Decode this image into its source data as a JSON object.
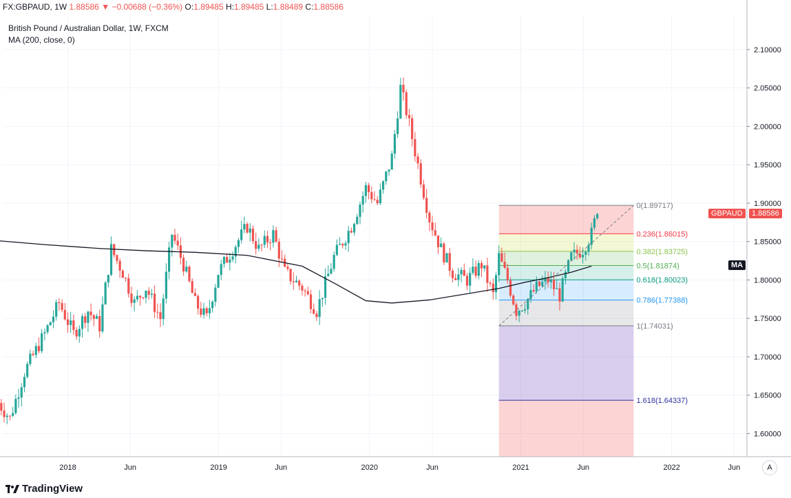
{
  "header": {
    "symbol": "FX:GBPAUD, 1W",
    "last": "1.88586",
    "arrow": "▼",
    "change": "−0.00688 (−0.36%)",
    "o_label": "O:",
    "o_value": "1.89485",
    "h_label": "H:",
    "h_value": "1.89485",
    "l_label": "L:",
    "l_value": "1.88489",
    "c_label": "C:",
    "c_value": "1.88586"
  },
  "legend": {
    "title": "British Pound / Australian Dollar, 1W, FXCM",
    "indicator": "MA (200, close, 0)"
  },
  "tags": {
    "symbol_tag": "GBPAUD",
    "price_tag": "1.88586",
    "ma_tag": "MA"
  },
  "brand": "TradingView",
  "auto_button": "A",
  "colors": {
    "up": "#26a69a",
    "down": "#ef5350",
    "ma": "#131722",
    "red_tag": "#ef5350"
  },
  "chart_data": {
    "type": "candlestick",
    "symbol": "GBPAUD",
    "timeframe": "1W",
    "y_range": [
      1.575,
      2.135
    ],
    "y_ticks": [
      "1.60000",
      "1.65000",
      "1.70000",
      "1.75000",
      "1.80000",
      "1.85000",
      "1.90000",
      "1.95000",
      "2.00000",
      "2.05000",
      "2.10000"
    ],
    "x_ticks": [
      "2018",
      "Jun",
      "2019",
      "Jun",
      "2020",
      "Jun",
      "2021",
      "Jun",
      "2022",
      "Jun"
    ],
    "x_tick_dates": [
      "2018-01-01",
      "2018-06-01",
      "2019-01-01",
      "2019-06-01",
      "2020-01-01",
      "2020-06-01",
      "2021-01-01",
      "2021-06-01",
      "2022-01-01",
      "2022-06-01"
    ],
    "waypoints": [
      [
        "2017-07-17",
        1.64
      ],
      [
        "2017-08-14",
        1.62
      ],
      [
        "2017-09-18",
        1.68
      ],
      [
        "2017-11-06",
        1.73
      ],
      [
        "2017-12-11",
        1.77
      ],
      [
        "2018-01-15",
        1.73
      ],
      [
        "2018-02-19",
        1.76
      ],
      [
        "2018-03-19",
        1.74
      ],
      [
        "2018-04-16",
        1.84
      ],
      [
        "2018-05-14",
        1.81
      ],
      [
        "2018-06-11",
        1.77
      ],
      [
        "2018-07-09",
        1.79
      ],
      [
        "2018-08-13",
        1.75
      ],
      [
        "2018-09-10",
        1.86
      ],
      [
        "2018-10-08",
        1.82
      ],
      [
        "2018-11-05",
        1.77
      ],
      [
        "2018-12-03",
        1.75
      ],
      [
        "2018-12-31",
        1.81
      ],
      [
        "2019-02-04",
        1.84
      ],
      [
        "2019-03-11",
        1.87
      ],
      [
        "2019-04-08",
        1.84
      ],
      [
        "2019-05-13",
        1.86
      ],
      [
        "2019-06-10",
        1.81
      ],
      [
        "2019-07-22",
        1.79
      ],
      [
        "2019-08-26",
        1.76
      ],
      [
        "2019-10-07",
        1.83
      ],
      [
        "2019-11-18",
        1.87
      ],
      [
        "2019-12-23",
        1.92
      ],
      [
        "2020-01-20",
        1.9
      ],
      [
        "2020-02-24",
        1.96
      ],
      [
        "2020-03-16",
        2.05
      ],
      [
        "2020-03-30",
        2.02
      ],
      [
        "2020-04-27",
        1.95
      ],
      [
        "2020-05-25",
        1.88
      ],
      [
        "2020-06-22",
        1.84
      ],
      [
        "2020-07-20",
        1.81
      ],
      [
        "2020-08-24",
        1.8
      ],
      [
        "2020-09-28",
        1.82
      ],
      [
        "2020-10-26",
        1.78
      ],
      [
        "2020-11-09",
        1.83
      ],
      [
        "2020-11-30",
        1.8
      ],
      [
        "2020-12-21",
        1.76
      ],
      [
        "2021-01-11",
        1.77
      ],
      [
        "2021-02-08",
        1.79
      ],
      [
        "2021-03-08",
        1.8
      ],
      [
        "2021-04-05",
        1.78
      ],
      [
        "2021-05-03",
        1.83
      ],
      [
        "2021-05-31",
        1.84
      ],
      [
        "2021-06-21",
        1.86
      ],
      [
        "2021-07-05",
        1.89
      ]
    ],
    "moving_average": {
      "name": "MA (200, close, 0)",
      "points": [
        [
          "2017-07-17",
          1.851
        ],
        [
          "2017-11-06",
          1.846
        ],
        [
          "2018-03-19",
          1.841
        ],
        [
          "2018-07-09",
          1.838
        ],
        [
          "2018-11-05",
          1.836
        ],
        [
          "2019-03-11",
          1.832
        ],
        [
          "2019-07-22",
          1.818
        ],
        [
          "2019-10-07",
          1.796
        ],
        [
          "2019-12-23",
          1.773
        ],
        [
          "2020-02-24",
          1.77
        ],
        [
          "2020-05-25",
          1.774
        ],
        [
          "2020-08-24",
          1.782
        ],
        [
          "2020-11-09",
          1.789
        ],
        [
          "2021-01-11",
          1.797
        ],
        [
          "2021-03-08",
          1.803
        ],
        [
          "2021-05-03",
          1.81
        ],
        [
          "2021-06-21",
          1.818
        ]
      ]
    },
    "fibonacci": {
      "start_date": "2020-11-09",
      "end_date": "2021-10-01",
      "levels": [
        {
          "ratio": "0",
          "label": "0(1.89717)",
          "price": 1.89717,
          "color": "#787b86",
          "fill": "rgba(239,83,80,0.25)"
        },
        {
          "ratio": "0.236",
          "label": "0.236(1.86015)",
          "price": 1.86015,
          "color": "#f23645",
          "fill": "rgba(205,220,57,0.22)"
        },
        {
          "ratio": "0.382",
          "label": "0.382(1.83725)",
          "price": 1.83725,
          "color": "#8bc34a",
          "fill": "rgba(76,175,80,0.18)"
        },
        {
          "ratio": "0.5",
          "label": "0.5(1.81874)",
          "price": 1.81874,
          "color": "#4caf50",
          "fill": "rgba(8,153,129,0.16)"
        },
        {
          "ratio": "0.618",
          "label": "0.618(1.80023)",
          "price": 1.80023,
          "color": "#089981",
          "fill": "rgba(33,150,243,0.18)"
        },
        {
          "ratio": "0.786",
          "label": "0.786(1.77388)",
          "price": 1.77388,
          "color": "#2196f3",
          "fill": "rgba(120,123,134,0.18)"
        },
        {
          "ratio": "1",
          "label": "1(1.74031)",
          "price": 1.74031,
          "color": "#787b86",
          "fill": "rgba(103,58,183,0.25)"
        },
        {
          "ratio": "1.618",
          "label": "1.618(1.64337)",
          "price": 1.64337,
          "color": "#2f2f9e",
          "fill": "rgba(239,83,80,0.25)"
        }
      ]
    },
    "trend_line": {
      "from": [
        "2020-11-09",
        1.74031
      ],
      "to": [
        "2021-10-01",
        1.89717
      ]
    },
    "last_price": 1.88586
  }
}
